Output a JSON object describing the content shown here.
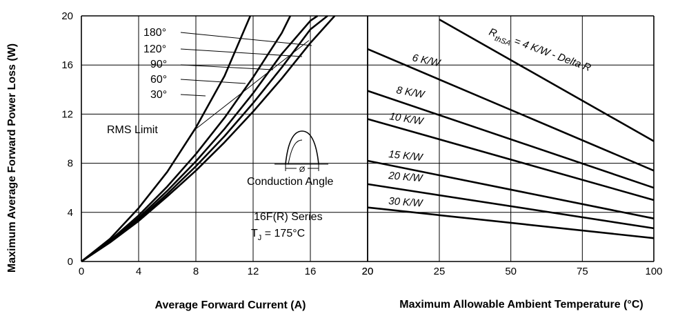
{
  "chart_data": [
    {
      "type": "line",
      "xlabel": "Average Forward Current (A)",
      "ylabel": "Maximum Average Forward Power Loss (W)",
      "xlim": [
        0,
        20
      ],
      "ylim": [
        0,
        20
      ],
      "xticks": [
        "0",
        "4",
        "8",
        "12",
        "16",
        "20"
      ],
      "yticks": [
        "0",
        "4",
        "8",
        "12",
        "16",
        "20"
      ],
      "grid": true,
      "series": [
        {
          "name": "180°",
          "x": [
            0,
            2,
            4,
            6,
            8,
            10,
            12,
            14,
            16,
            17.7
          ],
          "y": [
            0,
            1.55,
            3.3,
            5.3,
            7.4,
            9.7,
            12.2,
            14.9,
            17.8,
            20
          ]
        },
        {
          "name": "120°",
          "x": [
            0,
            2,
            4,
            6,
            8,
            10,
            12,
            14,
            16,
            17.2
          ],
          "y": [
            0,
            1.6,
            3.4,
            5.5,
            7.75,
            10.2,
            12.9,
            15.8,
            18.9,
            20
          ]
        },
        {
          "name": "90°",
          "x": [
            0,
            2,
            4,
            6,
            8,
            10,
            12,
            14,
            16,
            16.5
          ],
          "y": [
            0,
            1.65,
            3.55,
            5.75,
            8.15,
            10.8,
            13.7,
            16.9,
            19.6,
            20
          ]
        },
        {
          "name": "60°",
          "x": [
            0,
            2,
            4,
            6,
            8,
            10,
            12,
            14,
            14.6
          ],
          "y": [
            0,
            1.7,
            3.75,
            6.1,
            8.75,
            11.7,
            15.0,
            18.6,
            20
          ]
        },
        {
          "name": "30°",
          "x": [
            0,
            2,
            4,
            6,
            8,
            10,
            11.8
          ],
          "y": [
            0,
            1.85,
            4.35,
            7.3,
            10.9,
            15.1,
            20
          ]
        }
      ],
      "annotations": {
        "angles": [
          "180°",
          "120°",
          "90°",
          "60°",
          "30°"
        ],
        "rms_limit": "RMS Limit",
        "rms_limit_line": {
          "x": [
            8.0,
            15.9
          ],
          "y": [
            10.8,
            18.0
          ]
        },
        "conduction_angle": "Conduction Angle",
        "phi": "Ø",
        "series_name": "16F(R) Series",
        "tj_main": "T",
        "tj_sub": "J",
        "tj_rest": " = 175°C"
      }
    },
    {
      "type": "line",
      "xlabel": "Maximum Allowable Ambient Temperature (°C)",
      "xlim": [
        20,
        100
      ],
      "ylim": [
        0,
        20
      ],
      "xticks": [
        "20",
        "25",
        "50",
        "75",
        "100"
      ],
      "grid": true,
      "series": [
        {
          "name": "RthSA = 4 K/W - Delta R",
          "x": [
            25,
            100
          ],
          "y": [
            19.7,
            9.8
          ]
        },
        {
          "name": "6 K/W",
          "x": [
            20,
            100
          ],
          "y": [
            17.3,
            7.4
          ]
        },
        {
          "name": "8 K/W",
          "x": [
            20,
            100
          ],
          "y": [
            13.9,
            6.0
          ]
        },
        {
          "name": "10 K/W",
          "x": [
            20,
            100
          ],
          "y": [
            11.6,
            5.0
          ]
        },
        {
          "name": "15 K/W",
          "x": [
            20,
            100
          ],
          "y": [
            8.2,
            3.5
          ]
        },
        {
          "name": "20 K/W",
          "x": [
            20,
            100
          ],
          "y": [
            6.3,
            2.7
          ]
        },
        {
          "name": "30 K/W",
          "x": [
            20,
            100
          ],
          "y": [
            4.4,
            1.9
          ]
        }
      ],
      "annotations": {
        "rth_main": "R",
        "rth_sub": "thSA",
        "rth_rest": "  =  4 K/W - Delta R",
        "labels": [
          "6 K/W",
          "8 K/W",
          "10 K/W",
          "15 K/W",
          "20 K/W",
          "30 K/W"
        ]
      }
    }
  ]
}
